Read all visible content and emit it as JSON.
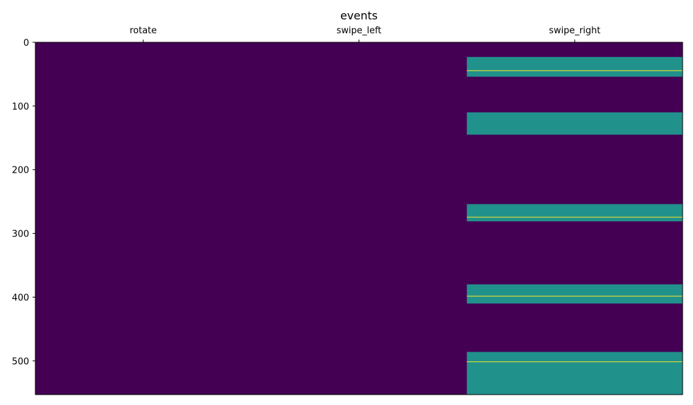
{
  "chart_data": {
    "type": "heatmap",
    "title": "events",
    "x_tick_position": "top",
    "categories": [
      "rotate",
      "swipe_left",
      "swipe_right"
    ],
    "y_ticks": [
      "0",
      "100",
      "200",
      "300",
      "400",
      "500"
    ],
    "y_tick_values": [
      0,
      100,
      200,
      300,
      400,
      500
    ],
    "ylim": [
      0,
      553
    ],
    "y_inverted": true,
    "value_range": [
      0,
      2
    ],
    "colormap": [
      "#440154",
      "#21918c",
      "#fde725"
    ],
    "default_value": 0,
    "cells": [
      {
        "column": "swipe_right",
        "start": 23,
        "end": 54,
        "value": 1
      },
      {
        "column": "swipe_right",
        "start": 44,
        "end": 45,
        "value": 2
      },
      {
        "column": "swipe_right",
        "start": 110,
        "end": 145,
        "value": 1
      },
      {
        "column": "swipe_right",
        "start": 254,
        "end": 281,
        "value": 1
      },
      {
        "column": "swipe_right",
        "start": 274,
        "end": 275,
        "value": 2
      },
      {
        "column": "swipe_right",
        "start": 380,
        "end": 410,
        "value": 1
      },
      {
        "column": "swipe_right",
        "start": 398,
        "end": 399,
        "value": 2
      },
      {
        "column": "swipe_right",
        "start": 486,
        "end": 553,
        "value": 1
      },
      {
        "column": "swipe_right",
        "start": 501,
        "end": 502,
        "value": 2
      }
    ],
    "grid": false,
    "legend": "none"
  }
}
